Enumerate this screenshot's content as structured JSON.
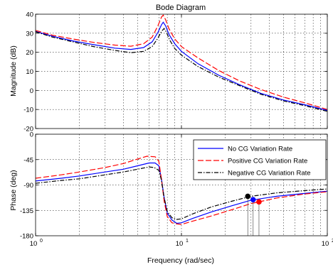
{
  "chart_data": [
    {
      "type": "line",
      "title": "Bode Diagram",
      "xlabel": "",
      "ylabel": "Magnitude (dB)",
      "xscale": "log",
      "xlim": [
        1,
        100
      ],
      "ylim": [
        -20,
        40
      ],
      "grid": true,
      "x_tick_labels": [],
      "y_ticks": [
        -20,
        -10,
        0,
        10,
        20,
        30,
        40
      ],
      "y_tick_labels": [
        "-20",
        "-10",
        "0",
        "10",
        "20",
        "30",
        "40"
      ],
      "series": [
        {
          "color": "#0000ff",
          "dash": "solid",
          "points": [
            [
              1,
              31
            ],
            [
              1.3,
              28.5
            ],
            [
              1.8,
              26
            ],
            [
              2.5,
              24
            ],
            [
              3.5,
              22.2
            ],
            [
              4.5,
              21.5
            ],
            [
              5.5,
              22.5
            ],
            [
              6.3,
              25.5
            ],
            [
              6.9,
              30.5
            ],
            [
              7.3,
              34.5
            ],
            [
              7.5,
              35.8
            ],
            [
              7.8,
              33.8
            ],
            [
              8.2,
              29.5
            ],
            [
              9,
              24.5
            ],
            [
              10,
              20.5
            ],
            [
              13,
              14
            ],
            [
              18,
              8
            ],
            [
              25,
              3
            ],
            [
              35,
              -1.5
            ],
            [
              50,
              -5
            ],
            [
              70,
              -7.5
            ],
            [
              100,
              -10.5
            ]
          ]
        },
        {
          "color": "#ff0000",
          "dash": "longdash",
          "points": [
            [
              1,
              31.5
            ],
            [
              1.3,
              29
            ],
            [
              1.8,
              27
            ],
            [
              2.5,
              25.2
            ],
            [
              3.5,
              23.8
            ],
            [
              4.5,
              23.2
            ],
            [
              5.5,
              24.5
            ],
            [
              6.3,
              28
            ],
            [
              6.9,
              34
            ],
            [
              7.3,
              38.5
            ],
            [
              7.5,
              39.5
            ],
            [
              7.8,
              37
            ],
            [
              8.2,
              32.5
            ],
            [
              9,
              27
            ],
            [
              10,
              23
            ],
            [
              13,
              17
            ],
            [
              18,
              10.5
            ],
            [
              25,
              5
            ],
            [
              35,
              0.5
            ],
            [
              50,
              -3.5
            ],
            [
              70,
              -6.5
            ],
            [
              100,
              -10
            ]
          ]
        },
        {
          "color": "#000000",
          "dash": "dashdot",
          "points": [
            [
              1,
              30.8
            ],
            [
              1.3,
              28
            ],
            [
              1.8,
              25.5
            ],
            [
              2.5,
              23
            ],
            [
              3.5,
              21
            ],
            [
              4.5,
              19.8
            ],
            [
              5.5,
              20.5
            ],
            [
              6.3,
              23
            ],
            [
              6.9,
              27.5
            ],
            [
              7.3,
              31
            ],
            [
              7.6,
              32.5
            ],
            [
              7.9,
              30.5
            ],
            [
              8.3,
              26.5
            ],
            [
              9,
              22
            ],
            [
              10,
              18.5
            ],
            [
              13,
              12.5
            ],
            [
              18,
              7
            ],
            [
              25,
              2.5
            ],
            [
              35,
              -2
            ],
            [
              50,
              -5.5
            ],
            [
              70,
              -8
            ],
            [
              100,
              -11
            ]
          ]
        }
      ]
    },
    {
      "type": "line",
      "title": "",
      "xlabel": "Frequency  (rad/sec)",
      "ylabel": "Phase (deg)",
      "xscale": "log",
      "xlim": [
        1,
        100
      ],
      "ylim": [
        -180,
        0
      ],
      "grid": true,
      "x_tick_labels": [
        {
          "base": "10",
          "exp": "0"
        },
        {
          "base": "10",
          "exp": "1"
        },
        {
          "base": "10",
          "exp": "2"
        }
      ],
      "y_ticks": [
        -180,
        -135,
        -90,
        -45,
        0
      ],
      "y_tick_labels": [
        "-180",
        "-135",
        "-90",
        "-45",
        "0"
      ],
      "legend": {
        "position": "top-right",
        "entries": [
          {
            "label": "No CG Variation Rate",
            "color": "#0000ff",
            "dash": "solid"
          },
          {
            "label": "Positive CG Variation Rate",
            "color": "#ff0000",
            "dash": "longdash"
          },
          {
            "label": "Negative CG Variation Rate",
            "color": "#000000",
            "dash": "dashdot"
          }
        ]
      },
      "series": [
        {
          "color": "#0000ff",
          "dash": "solid",
          "points": [
            [
              1,
              -83
            ],
            [
              1.5,
              -78
            ],
            [
              2,
              -74
            ],
            [
              3,
              -67
            ],
            [
              4,
              -62
            ],
            [
              5,
              -56
            ],
            [
              6,
              -51
            ],
            [
              6.6,
              -51
            ],
            [
              7,
              -56
            ],
            [
              7.3,
              -80
            ],
            [
              7.6,
              -112
            ],
            [
              8,
              -140
            ],
            [
              8.6,
              -152
            ],
            [
              9.3,
              -158
            ],
            [
              10,
              -157
            ],
            [
              12,
              -149
            ],
            [
              16,
              -138
            ],
            [
              22,
              -127
            ],
            [
              30,
              -117
            ],
            [
              45,
              -110
            ],
            [
              70,
              -105
            ],
            [
              100,
              -101
            ]
          ]
        },
        {
          "color": "#ff0000",
          "dash": "longdash",
          "points": [
            [
              1,
              -78
            ],
            [
              1.5,
              -72
            ],
            [
              2,
              -67
            ],
            [
              3,
              -59
            ],
            [
              4,
              -52
            ],
            [
              5,
              -44
            ],
            [
              5.8,
              -39
            ],
            [
              6.6,
              -40
            ],
            [
              7,
              -48
            ],
            [
              7.3,
              -80
            ],
            [
              7.6,
              -118
            ],
            [
              8,
              -146
            ],
            [
              8.6,
              -157
            ],
            [
              9.3,
              -159
            ],
            [
              10,
              -160
            ],
            [
              12,
              -154
            ],
            [
              16,
              -145
            ],
            [
              22,
              -134
            ],
            [
              30,
              -123
            ],
            [
              45,
              -113
            ],
            [
              70,
              -106
            ],
            [
              100,
              -102
            ]
          ]
        },
        {
          "color": "#000000",
          "dash": "dashdot",
          "points": [
            [
              1,
              -87
            ],
            [
              1.5,
              -82
            ],
            [
              2,
              -79
            ],
            [
              3,
              -72
            ],
            [
              4,
              -67
            ],
            [
              5,
              -62
            ],
            [
              6,
              -58
            ],
            [
              6.5,
              -59
            ],
            [
              7,
              -64
            ],
            [
              7.3,
              -82
            ],
            [
              7.6,
              -112
            ],
            [
              8,
              -137
            ],
            [
              8.6,
              -148
            ],
            [
              9.3,
              -151
            ],
            [
              10,
              -150
            ],
            [
              12,
              -141
            ],
            [
              16,
              -129
            ],
            [
              22,
              -119
            ],
            [
              30,
              -110
            ],
            [
              45,
              -104
            ],
            [
              70,
              -100
            ],
            [
              100,
              -97
            ]
          ]
        }
      ],
      "markers": [
        {
          "x": 28.5,
          "y": -110,
          "color": "#000000"
        },
        {
          "x": 31,
          "y": -116,
          "color": "#0000ff"
        },
        {
          "x": 34,
          "y": -120,
          "color": "#ff0000"
        }
      ]
    }
  ]
}
